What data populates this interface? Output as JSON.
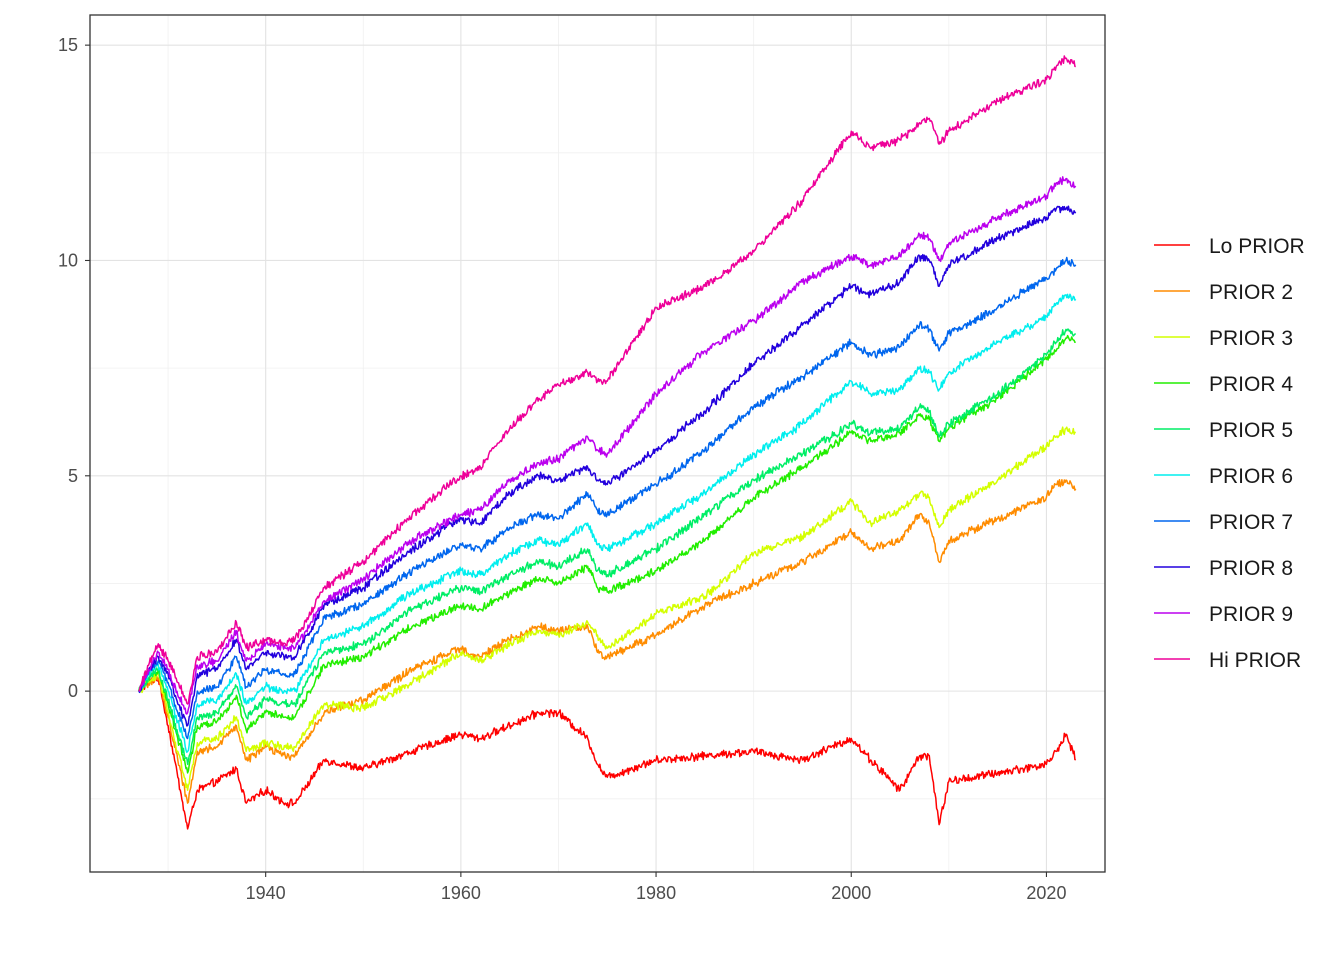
{
  "chart_data": {
    "type": "line",
    "title": "",
    "xlabel": "",
    "ylabel": "",
    "xlim": [
      1922,
      2026
    ],
    "ylim": [
      -4.2,
      15.7
    ],
    "x_ticks": [
      1940,
      1960,
      1980,
      2000,
      2020
    ],
    "x_tick_labels": [
      "1940",
      "1960",
      "1980",
      "2000",
      "2020"
    ],
    "y_ticks": [
      0,
      5,
      10,
      15
    ],
    "y_tick_labels": [
      "0",
      "5",
      "10",
      "15"
    ],
    "grid": true,
    "legend_position": "right",
    "x": [
      1927,
      1928,
      1929,
      1930,
      1931,
      1932,
      1933,
      1935,
      1937,
      1938,
      1940,
      1942,
      1943,
      1946,
      1950,
      1955,
      1960,
      1962,
      1965,
      1968,
      1970,
      1973,
      1974,
      1975,
      1980,
      1985,
      1990,
      1995,
      2000,
      2002,
      2005,
      2007,
      2008,
      2009,
      2010,
      2015,
      2020,
      2021,
      2022,
      2023
    ],
    "series": [
      {
        "name": "Lo PRIOR",
        "color": "#ff0000",
        "values": [
          0,
          0.2,
          0.3,
          -0.8,
          -2.0,
          -3.2,
          -2.3,
          -2.1,
          -1.8,
          -2.6,
          -2.3,
          -2.6,
          -2.6,
          -1.6,
          -1.8,
          -1.4,
          -1.0,
          -1.1,
          -0.8,
          -0.5,
          -0.5,
          -1.1,
          -1.7,
          -2.0,
          -1.6,
          -1.5,
          -1.4,
          -1.6,
          -1.1,
          -1.6,
          -2.3,
          -1.5,
          -1.5,
          -3.1,
          -2.1,
          -1.9,
          -1.7,
          -1.4,
          -1.0,
          -1.6
        ]
      },
      {
        "name": "PRIOR 2",
        "color": "#ff8c00",
        "values": [
          0,
          0.2,
          0.3,
          -0.6,
          -1.6,
          -2.6,
          -1.4,
          -1.3,
          -0.8,
          -1.6,
          -1.3,
          -1.5,
          -1.5,
          -0.5,
          -0.2,
          0.5,
          1.0,
          0.8,
          1.2,
          1.5,
          1.4,
          1.5,
          0.9,
          0.8,
          1.3,
          2.0,
          2.5,
          3.0,
          3.7,
          3.3,
          3.5,
          4.1,
          3.9,
          3.0,
          3.5,
          4.0,
          4.5,
          4.8,
          4.9,
          4.7
        ]
      },
      {
        "name": "PRIOR 3",
        "color": "#d4ff00",
        "values": [
          0,
          0.2,
          0.4,
          -0.5,
          -1.4,
          -2.3,
          -1.2,
          -1.1,
          -0.6,
          -1.4,
          -1.2,
          -1.3,
          -1.3,
          -0.3,
          -0.4,
          0.2,
          0.9,
          0.7,
          1.1,
          1.4,
          1.3,
          1.6,
          1.3,
          1.0,
          1.8,
          2.2,
          3.2,
          3.6,
          4.4,
          3.9,
          4.2,
          4.6,
          4.5,
          3.8,
          4.2,
          4.9,
          5.7,
          5.9,
          6.1,
          6.0
        ]
      },
      {
        "name": "PRIOR 4",
        "color": "#22ee00",
        "values": [
          0,
          0.3,
          0.5,
          -0.3,
          -1.1,
          -1.9,
          -0.8,
          -0.7,
          -0.1,
          -0.9,
          -0.5,
          -0.6,
          -0.6,
          0.6,
          0.8,
          1.5,
          2.0,
          1.9,
          2.3,
          2.6,
          2.5,
          2.9,
          2.4,
          2.3,
          2.8,
          3.5,
          4.5,
          5.2,
          6.0,
          5.8,
          6.0,
          6.4,
          6.3,
          5.8,
          6.1,
          6.8,
          7.7,
          7.9,
          8.2,
          8.1
        ]
      },
      {
        "name": "PRIOR 5",
        "color": "#00ee66",
        "values": [
          0,
          0.3,
          0.5,
          -0.2,
          -1.0,
          -1.7,
          -0.6,
          -0.5,
          0.1,
          -0.6,
          -0.2,
          -0.3,
          -0.3,
          0.9,
          1.1,
          1.9,
          2.4,
          2.3,
          2.7,
          3.0,
          2.9,
          3.3,
          2.8,
          2.7,
          3.3,
          4.1,
          4.9,
          5.5,
          6.2,
          6.0,
          6.1,
          6.6,
          6.5,
          5.9,
          6.2,
          6.9,
          7.8,
          8.1,
          8.4,
          8.3
        ]
      },
      {
        "name": "PRIOR 6",
        "color": "#00eeee",
        "values": [
          0,
          0.4,
          0.6,
          0.0,
          -0.7,
          -1.4,
          -0.3,
          -0.2,
          0.4,
          -0.3,
          0.1,
          0.0,
          0.0,
          1.2,
          1.5,
          2.3,
          2.8,
          2.7,
          3.2,
          3.5,
          3.4,
          3.9,
          3.4,
          3.3,
          3.9,
          4.6,
          5.5,
          6.2,
          7.2,
          6.9,
          7.0,
          7.5,
          7.4,
          7.0,
          7.4,
          8.1,
          8.7,
          9.0,
          9.2,
          9.1
        ]
      },
      {
        "name": "PRIOR 7",
        "color": "#0066ee",
        "values": [
          0,
          0.4,
          0.7,
          0.2,
          -0.5,
          -1.1,
          0.0,
          0.1,
          0.8,
          0.1,
          0.5,
          0.4,
          0.4,
          1.7,
          2.0,
          2.8,
          3.4,
          3.3,
          3.8,
          4.1,
          4.0,
          4.6,
          4.2,
          4.1,
          4.8,
          5.6,
          6.6,
          7.3,
          8.1,
          7.8,
          8.0,
          8.5,
          8.4,
          7.9,
          8.3,
          8.9,
          9.6,
          9.8,
          10.0,
          9.9
        ]
      },
      {
        "name": "PRIOR 8",
        "color": "#2200dd",
        "values": [
          0,
          0.5,
          0.8,
          0.4,
          -0.3,
          -0.8,
          0.4,
          0.5,
          1.2,
          0.5,
          0.9,
          0.8,
          0.8,
          2.0,
          2.4,
          3.3,
          4.0,
          3.9,
          4.6,
          5.0,
          4.9,
          5.2,
          4.9,
          4.8,
          5.6,
          6.5,
          7.6,
          8.5,
          9.4,
          9.2,
          9.5,
          10.1,
          10.0,
          9.4,
          9.9,
          10.5,
          11.0,
          11.2,
          11.2,
          11.1
        ]
      },
      {
        "name": "PRIOR 9",
        "color": "#bb00ee",
        "values": [
          0,
          0.5,
          0.9,
          0.5,
          -0.1,
          -0.5,
          0.6,
          0.7,
          1.4,
          0.7,
          1.1,
          1.0,
          1.0,
          2.1,
          2.6,
          3.5,
          4.1,
          4.2,
          4.9,
          5.3,
          5.4,
          5.9,
          5.6,
          5.5,
          6.9,
          7.9,
          8.6,
          9.5,
          10.1,
          9.9,
          10.1,
          10.6,
          10.5,
          10.0,
          10.4,
          11.0,
          11.5,
          11.8,
          11.9,
          11.7
        ]
      },
      {
        "name": "Hi PRIOR",
        "color": "#ee0099",
        "values": [
          0,
          0.6,
          1.1,
          0.7,
          0.2,
          -0.3,
          0.8,
          0.9,
          1.6,
          1.0,
          1.2,
          1.1,
          1.2,
          2.4,
          3.0,
          4.1,
          5.0,
          5.2,
          6.1,
          6.8,
          7.1,
          7.4,
          7.2,
          7.2,
          8.9,
          9.4,
          10.2,
          11.4,
          13.0,
          12.6,
          12.8,
          13.2,
          13.3,
          12.7,
          13.0,
          13.7,
          14.2,
          14.5,
          14.7,
          14.5
        ]
      }
    ]
  }
}
